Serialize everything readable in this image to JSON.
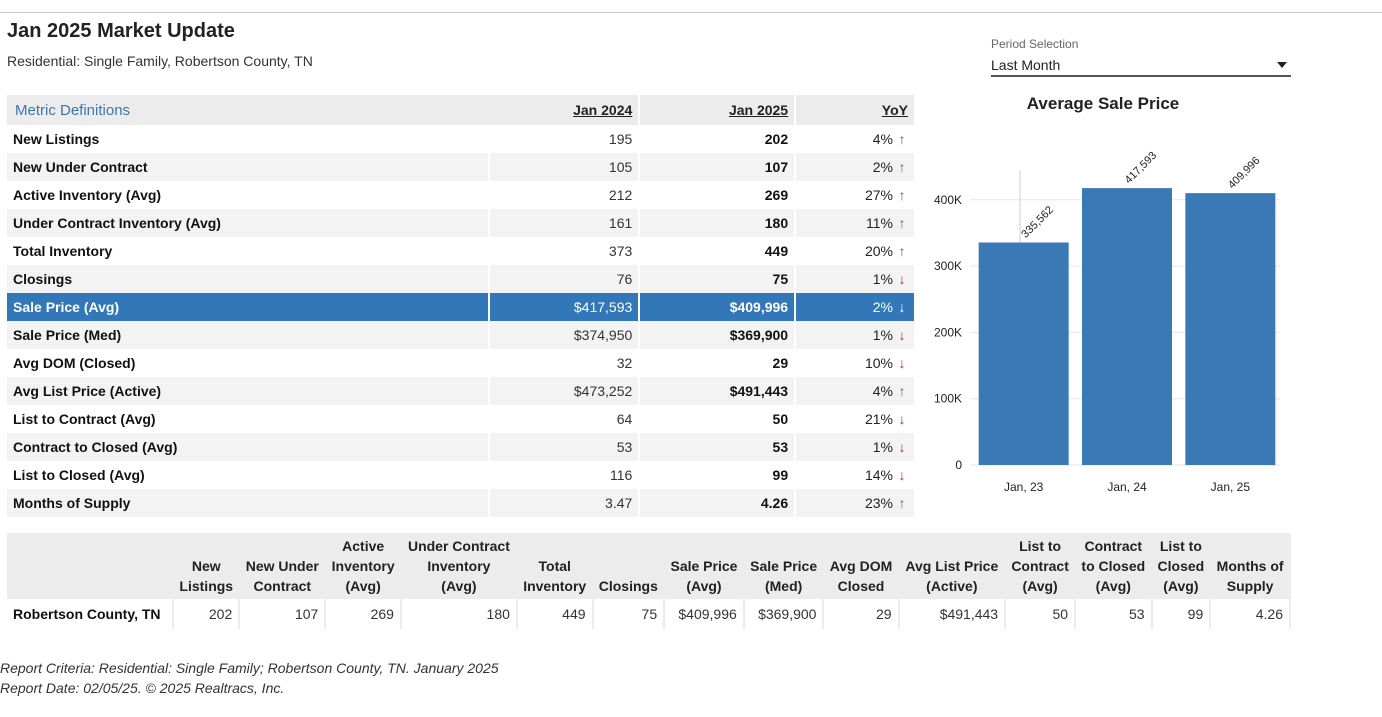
{
  "header": {
    "title": "Jan 2025 Market Update",
    "subtitle": "Residential: Single Family, Robertson County, TN"
  },
  "period": {
    "label": "Period Selection",
    "value": "Last Month"
  },
  "metrics": {
    "definitions_label": "Metric Definitions",
    "columns": [
      "Jan 2024",
      "Jan 2025",
      "YoY"
    ],
    "rows": [
      {
        "name": "New Listings",
        "prev": "195",
        "cur": "202",
        "yoy": "4%",
        "dir": "up",
        "arrow": "↑"
      },
      {
        "name": "New Under Contract",
        "prev": "105",
        "cur": "107",
        "yoy": "2%",
        "dir": "up",
        "arrow": "↑"
      },
      {
        "name": "Active Inventory (Avg)",
        "prev": "212",
        "cur": "269",
        "yoy": "27%",
        "dir": "up",
        "arrow": "↑"
      },
      {
        "name": "Under Contract Inventory (Avg)",
        "prev": "161",
        "cur": "180",
        "yoy": "11%",
        "dir": "up",
        "arrow": "↑"
      },
      {
        "name": "Total Inventory",
        "prev": "373",
        "cur": "449",
        "yoy": "20%",
        "dir": "up",
        "arrow": "↑"
      },
      {
        "name": "Closings",
        "prev": "76",
        "cur": "75",
        "yoy": "1%",
        "dir": "down",
        "arrow": "↓"
      },
      {
        "name": "Sale Price (Avg)",
        "prev": "$417,593",
        "cur": "$409,996",
        "yoy": "2%",
        "dir": "down",
        "arrow": "↓"
      },
      {
        "name": "Sale Price (Med)",
        "prev": "$374,950",
        "cur": "$369,900",
        "yoy": "1%",
        "dir": "down",
        "arrow": "↓"
      },
      {
        "name": "Avg DOM (Closed)",
        "prev": "32",
        "cur": "29",
        "yoy": "10%",
        "dir": "down",
        "arrow": "↓"
      },
      {
        "name": "Avg List Price (Active)",
        "prev": "$473,252",
        "cur": "$491,443",
        "yoy": "4%",
        "dir": "up",
        "arrow": "↑"
      },
      {
        "name": "List to Contract (Avg)",
        "prev": "64",
        "cur": "50",
        "yoy": "21%",
        "dir": "down",
        "arrow": "↓"
      },
      {
        "name": "Contract to Closed (Avg)",
        "prev": "53",
        "cur": "53",
        "yoy": "1%",
        "dir": "down",
        "arrow": "↓"
      },
      {
        "name": "List to Closed (Avg)",
        "prev": "116",
        "cur": "99",
        "yoy": "14%",
        "dir": "down",
        "arrow": "↓"
      },
      {
        "name": "Months of Supply",
        "prev": "3.47",
        "cur": "4.26",
        "yoy": "23%",
        "dir": "up",
        "arrow": "↑"
      }
    ],
    "selected_row": "Sale Price (Avg)"
  },
  "chart_data": {
    "type": "bar",
    "title": "Average Sale Price",
    "categories": [
      "Jan, 23",
      "Jan, 24",
      "Jan, 25"
    ],
    "values": [
      335562,
      417593,
      409996
    ],
    "data_labels": [
      "335,562",
      "417,593",
      "409,996"
    ],
    "yticks": [
      0,
      100000,
      200000,
      300000,
      400000
    ],
    "ytick_labels": [
      "0",
      "100K",
      "200K",
      "300K",
      "400K"
    ],
    "ylim": [
      0,
      460000
    ],
    "grid": true,
    "bar_color": "#3a78b6"
  },
  "summary": {
    "headers": [
      "",
      "New Listings",
      "New Under Contract",
      "Active Inventory (Avg)",
      "Under Contract Inventory (Avg)",
      "Total Inventory",
      "Closings",
      "Sale Price (Avg)",
      "Sale Price (Med)",
      "Avg DOM Closed",
      "Avg List Price (Active)",
      "List to Contract (Avg)",
      "Contract to Closed (Avg)",
      "List to Closed (Avg)",
      "Months of Supply"
    ],
    "header_lines": [
      [
        ""
      ],
      [
        "New",
        "Listings"
      ],
      [
        "New Under",
        "Contract"
      ],
      [
        "Active",
        "Inventory",
        "(Avg)"
      ],
      [
        "Under Contract",
        "Inventory",
        "(Avg)"
      ],
      [
        "Total",
        "Inventory"
      ],
      [
        "Closings"
      ],
      [
        "Sale Price",
        "(Avg)"
      ],
      [
        "Sale Price",
        "(Med)"
      ],
      [
        "Avg DOM",
        "Closed"
      ],
      [
        "Avg List Price",
        "(Active)"
      ],
      [
        "List to",
        "Contract",
        "(Avg)"
      ],
      [
        "Contract",
        "to Closed",
        "(Avg)"
      ],
      [
        "List to",
        "Closed",
        "(Avg)"
      ],
      [
        "Months of",
        "Supply"
      ]
    ],
    "row": {
      "location": "Robertson County, TN",
      "values": [
        "202",
        "107",
        "269",
        "180",
        "449",
        "75",
        "$409,996",
        "$369,900",
        "29",
        "$491,443",
        "50",
        "53",
        "99",
        "4.26"
      ]
    }
  },
  "footer": {
    "criteria": "Report Criteria: Residential: Single Family; Robertson County, TN. January 2025",
    "report_date": "Report Date: 02/05/25. © 2025 Realtracs, Inc."
  }
}
